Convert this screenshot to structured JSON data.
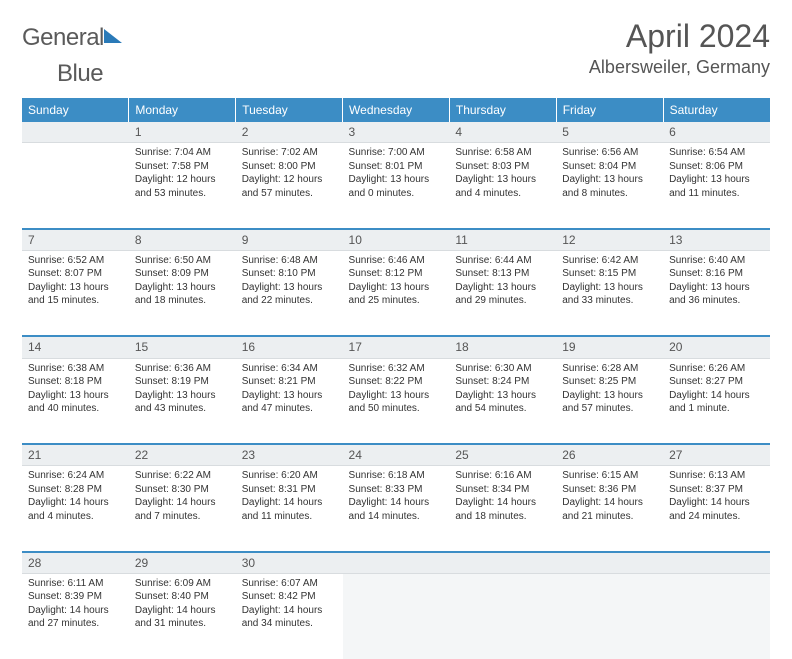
{
  "logo": {
    "part1": "General",
    "part2": "Blue"
  },
  "title": "April 2024",
  "location": "Albersweiler, Germany",
  "colors": {
    "header_bg": "#3c8dc5",
    "header_fg": "#ffffff",
    "daynum_bg": "#eceff1",
    "week_divider": "#3c8dc5",
    "text": "#333333",
    "title_color": "#555555"
  },
  "weekdays": [
    "Sunday",
    "Monday",
    "Tuesday",
    "Wednesday",
    "Thursday",
    "Friday",
    "Saturday"
  ],
  "weeks": [
    {
      "nums": [
        "",
        "1",
        "2",
        "3",
        "4",
        "5",
        "6"
      ],
      "cells": [
        null,
        {
          "sunrise": "Sunrise: 7:04 AM",
          "sunset": "Sunset: 7:58 PM",
          "day1": "Daylight: 12 hours",
          "day2": "and 53 minutes."
        },
        {
          "sunrise": "Sunrise: 7:02 AM",
          "sunset": "Sunset: 8:00 PM",
          "day1": "Daylight: 12 hours",
          "day2": "and 57 minutes."
        },
        {
          "sunrise": "Sunrise: 7:00 AM",
          "sunset": "Sunset: 8:01 PM",
          "day1": "Daylight: 13 hours",
          "day2": "and 0 minutes."
        },
        {
          "sunrise": "Sunrise: 6:58 AM",
          "sunset": "Sunset: 8:03 PM",
          "day1": "Daylight: 13 hours",
          "day2": "and 4 minutes."
        },
        {
          "sunrise": "Sunrise: 6:56 AM",
          "sunset": "Sunset: 8:04 PM",
          "day1": "Daylight: 13 hours",
          "day2": "and 8 minutes."
        },
        {
          "sunrise": "Sunrise: 6:54 AM",
          "sunset": "Sunset: 8:06 PM",
          "day1": "Daylight: 13 hours",
          "day2": "and 11 minutes."
        }
      ]
    },
    {
      "nums": [
        "7",
        "8",
        "9",
        "10",
        "11",
        "12",
        "13"
      ],
      "cells": [
        {
          "sunrise": "Sunrise: 6:52 AM",
          "sunset": "Sunset: 8:07 PM",
          "day1": "Daylight: 13 hours",
          "day2": "and 15 minutes."
        },
        {
          "sunrise": "Sunrise: 6:50 AM",
          "sunset": "Sunset: 8:09 PM",
          "day1": "Daylight: 13 hours",
          "day2": "and 18 minutes."
        },
        {
          "sunrise": "Sunrise: 6:48 AM",
          "sunset": "Sunset: 8:10 PM",
          "day1": "Daylight: 13 hours",
          "day2": "and 22 minutes."
        },
        {
          "sunrise": "Sunrise: 6:46 AM",
          "sunset": "Sunset: 8:12 PM",
          "day1": "Daylight: 13 hours",
          "day2": "and 25 minutes."
        },
        {
          "sunrise": "Sunrise: 6:44 AM",
          "sunset": "Sunset: 8:13 PM",
          "day1": "Daylight: 13 hours",
          "day2": "and 29 minutes."
        },
        {
          "sunrise": "Sunrise: 6:42 AM",
          "sunset": "Sunset: 8:15 PM",
          "day1": "Daylight: 13 hours",
          "day2": "and 33 minutes."
        },
        {
          "sunrise": "Sunrise: 6:40 AM",
          "sunset": "Sunset: 8:16 PM",
          "day1": "Daylight: 13 hours",
          "day2": "and 36 minutes."
        }
      ]
    },
    {
      "nums": [
        "14",
        "15",
        "16",
        "17",
        "18",
        "19",
        "20"
      ],
      "cells": [
        {
          "sunrise": "Sunrise: 6:38 AM",
          "sunset": "Sunset: 8:18 PM",
          "day1": "Daylight: 13 hours",
          "day2": "and 40 minutes."
        },
        {
          "sunrise": "Sunrise: 6:36 AM",
          "sunset": "Sunset: 8:19 PM",
          "day1": "Daylight: 13 hours",
          "day2": "and 43 minutes."
        },
        {
          "sunrise": "Sunrise: 6:34 AM",
          "sunset": "Sunset: 8:21 PM",
          "day1": "Daylight: 13 hours",
          "day2": "and 47 minutes."
        },
        {
          "sunrise": "Sunrise: 6:32 AM",
          "sunset": "Sunset: 8:22 PM",
          "day1": "Daylight: 13 hours",
          "day2": "and 50 minutes."
        },
        {
          "sunrise": "Sunrise: 6:30 AM",
          "sunset": "Sunset: 8:24 PM",
          "day1": "Daylight: 13 hours",
          "day2": "and 54 minutes."
        },
        {
          "sunrise": "Sunrise: 6:28 AM",
          "sunset": "Sunset: 8:25 PM",
          "day1": "Daylight: 13 hours",
          "day2": "and 57 minutes."
        },
        {
          "sunrise": "Sunrise: 6:26 AM",
          "sunset": "Sunset: 8:27 PM",
          "day1": "Daylight: 14 hours",
          "day2": "and 1 minute."
        }
      ]
    },
    {
      "nums": [
        "21",
        "22",
        "23",
        "24",
        "25",
        "26",
        "27"
      ],
      "cells": [
        {
          "sunrise": "Sunrise: 6:24 AM",
          "sunset": "Sunset: 8:28 PM",
          "day1": "Daylight: 14 hours",
          "day2": "and 4 minutes."
        },
        {
          "sunrise": "Sunrise: 6:22 AM",
          "sunset": "Sunset: 8:30 PM",
          "day1": "Daylight: 14 hours",
          "day2": "and 7 minutes."
        },
        {
          "sunrise": "Sunrise: 6:20 AM",
          "sunset": "Sunset: 8:31 PM",
          "day1": "Daylight: 14 hours",
          "day2": "and 11 minutes."
        },
        {
          "sunrise": "Sunrise: 6:18 AM",
          "sunset": "Sunset: 8:33 PM",
          "day1": "Daylight: 14 hours",
          "day2": "and 14 minutes."
        },
        {
          "sunrise": "Sunrise: 6:16 AM",
          "sunset": "Sunset: 8:34 PM",
          "day1": "Daylight: 14 hours",
          "day2": "and 18 minutes."
        },
        {
          "sunrise": "Sunrise: 6:15 AM",
          "sunset": "Sunset: 8:36 PM",
          "day1": "Daylight: 14 hours",
          "day2": "and 21 minutes."
        },
        {
          "sunrise": "Sunrise: 6:13 AM",
          "sunset": "Sunset: 8:37 PM",
          "day1": "Daylight: 14 hours",
          "day2": "and 24 minutes."
        }
      ]
    },
    {
      "nums": [
        "28",
        "29",
        "30",
        "",
        "",
        "",
        ""
      ],
      "cells": [
        {
          "sunrise": "Sunrise: 6:11 AM",
          "sunset": "Sunset: 8:39 PM",
          "day1": "Daylight: 14 hours",
          "day2": "and 27 minutes."
        },
        {
          "sunrise": "Sunrise: 6:09 AM",
          "sunset": "Sunset: 8:40 PM",
          "day1": "Daylight: 14 hours",
          "day2": "and 31 minutes."
        },
        {
          "sunrise": "Sunrise: 6:07 AM",
          "sunset": "Sunset: 8:42 PM",
          "day1": "Daylight: 14 hours",
          "day2": "and 34 minutes."
        },
        null,
        null,
        null,
        null
      ]
    }
  ]
}
